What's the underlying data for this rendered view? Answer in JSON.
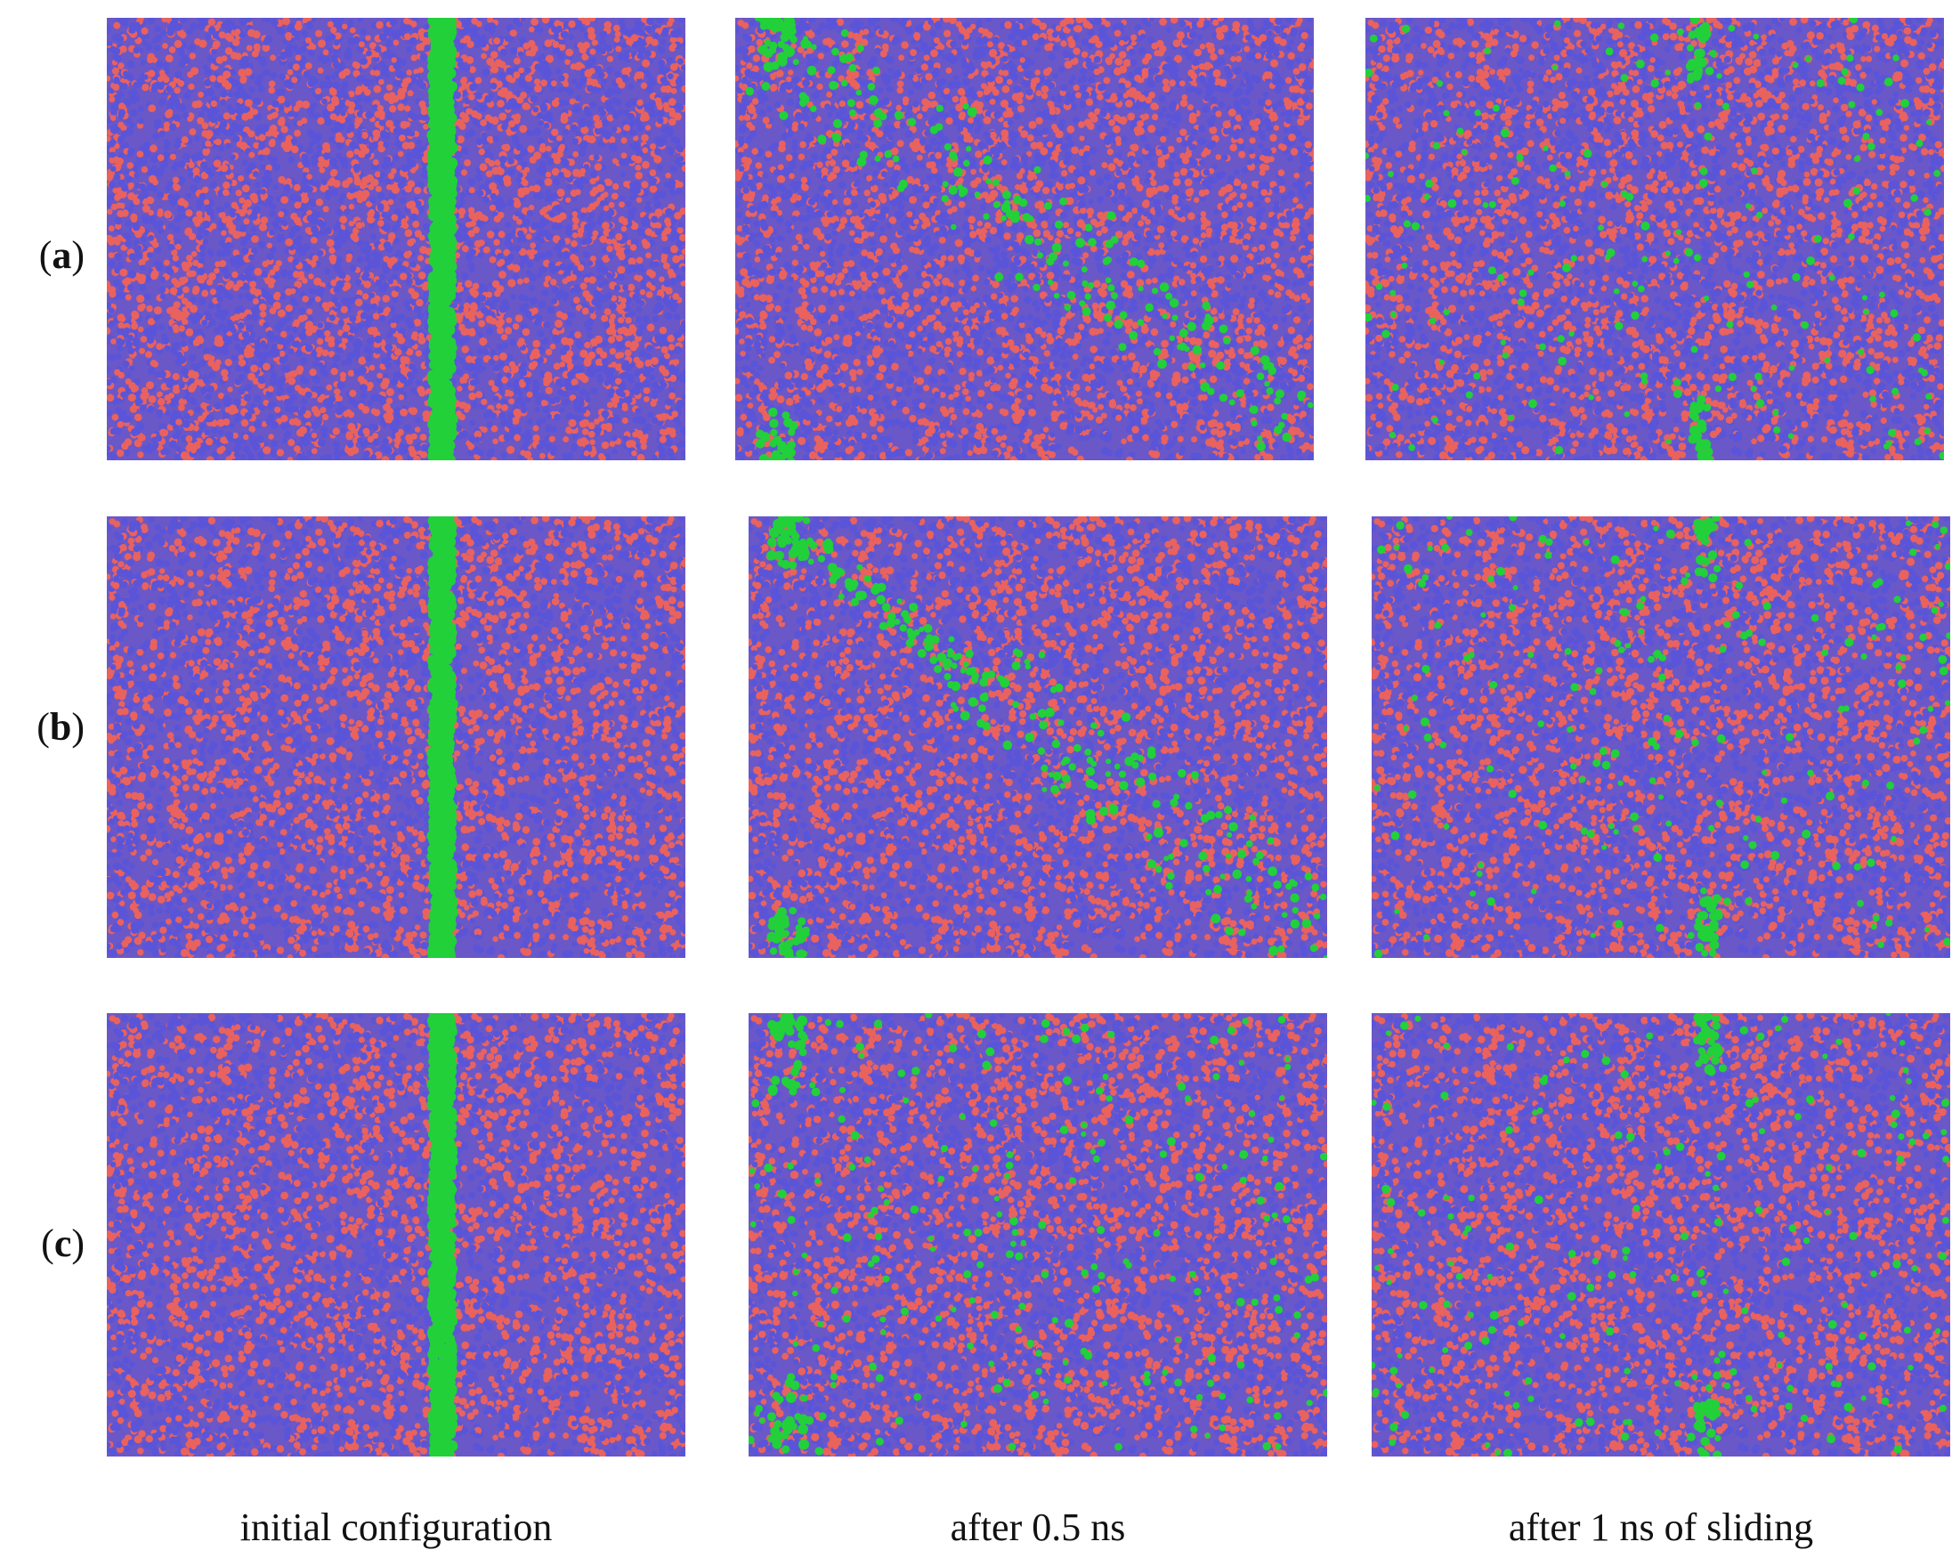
{
  "figure": {
    "rows": [
      {
        "open": "(",
        "letter": "a",
        "close": ")"
      },
      {
        "open": "(",
        "letter": "b",
        "close": ")"
      },
      {
        "open": "(",
        "letter": "c",
        "close": ")"
      }
    ],
    "columns": [
      {
        "caption": "initial configuration"
      },
      {
        "caption": "after 0.5 ns"
      },
      {
        "caption": "after 1 ns of sliding"
      }
    ]
  },
  "colors": {
    "matrix_blue": "#6a58c8",
    "atom_red": "#e9625e",
    "atom_blue": "#5a55d8",
    "interface_green": "#22d03a"
  }
}
